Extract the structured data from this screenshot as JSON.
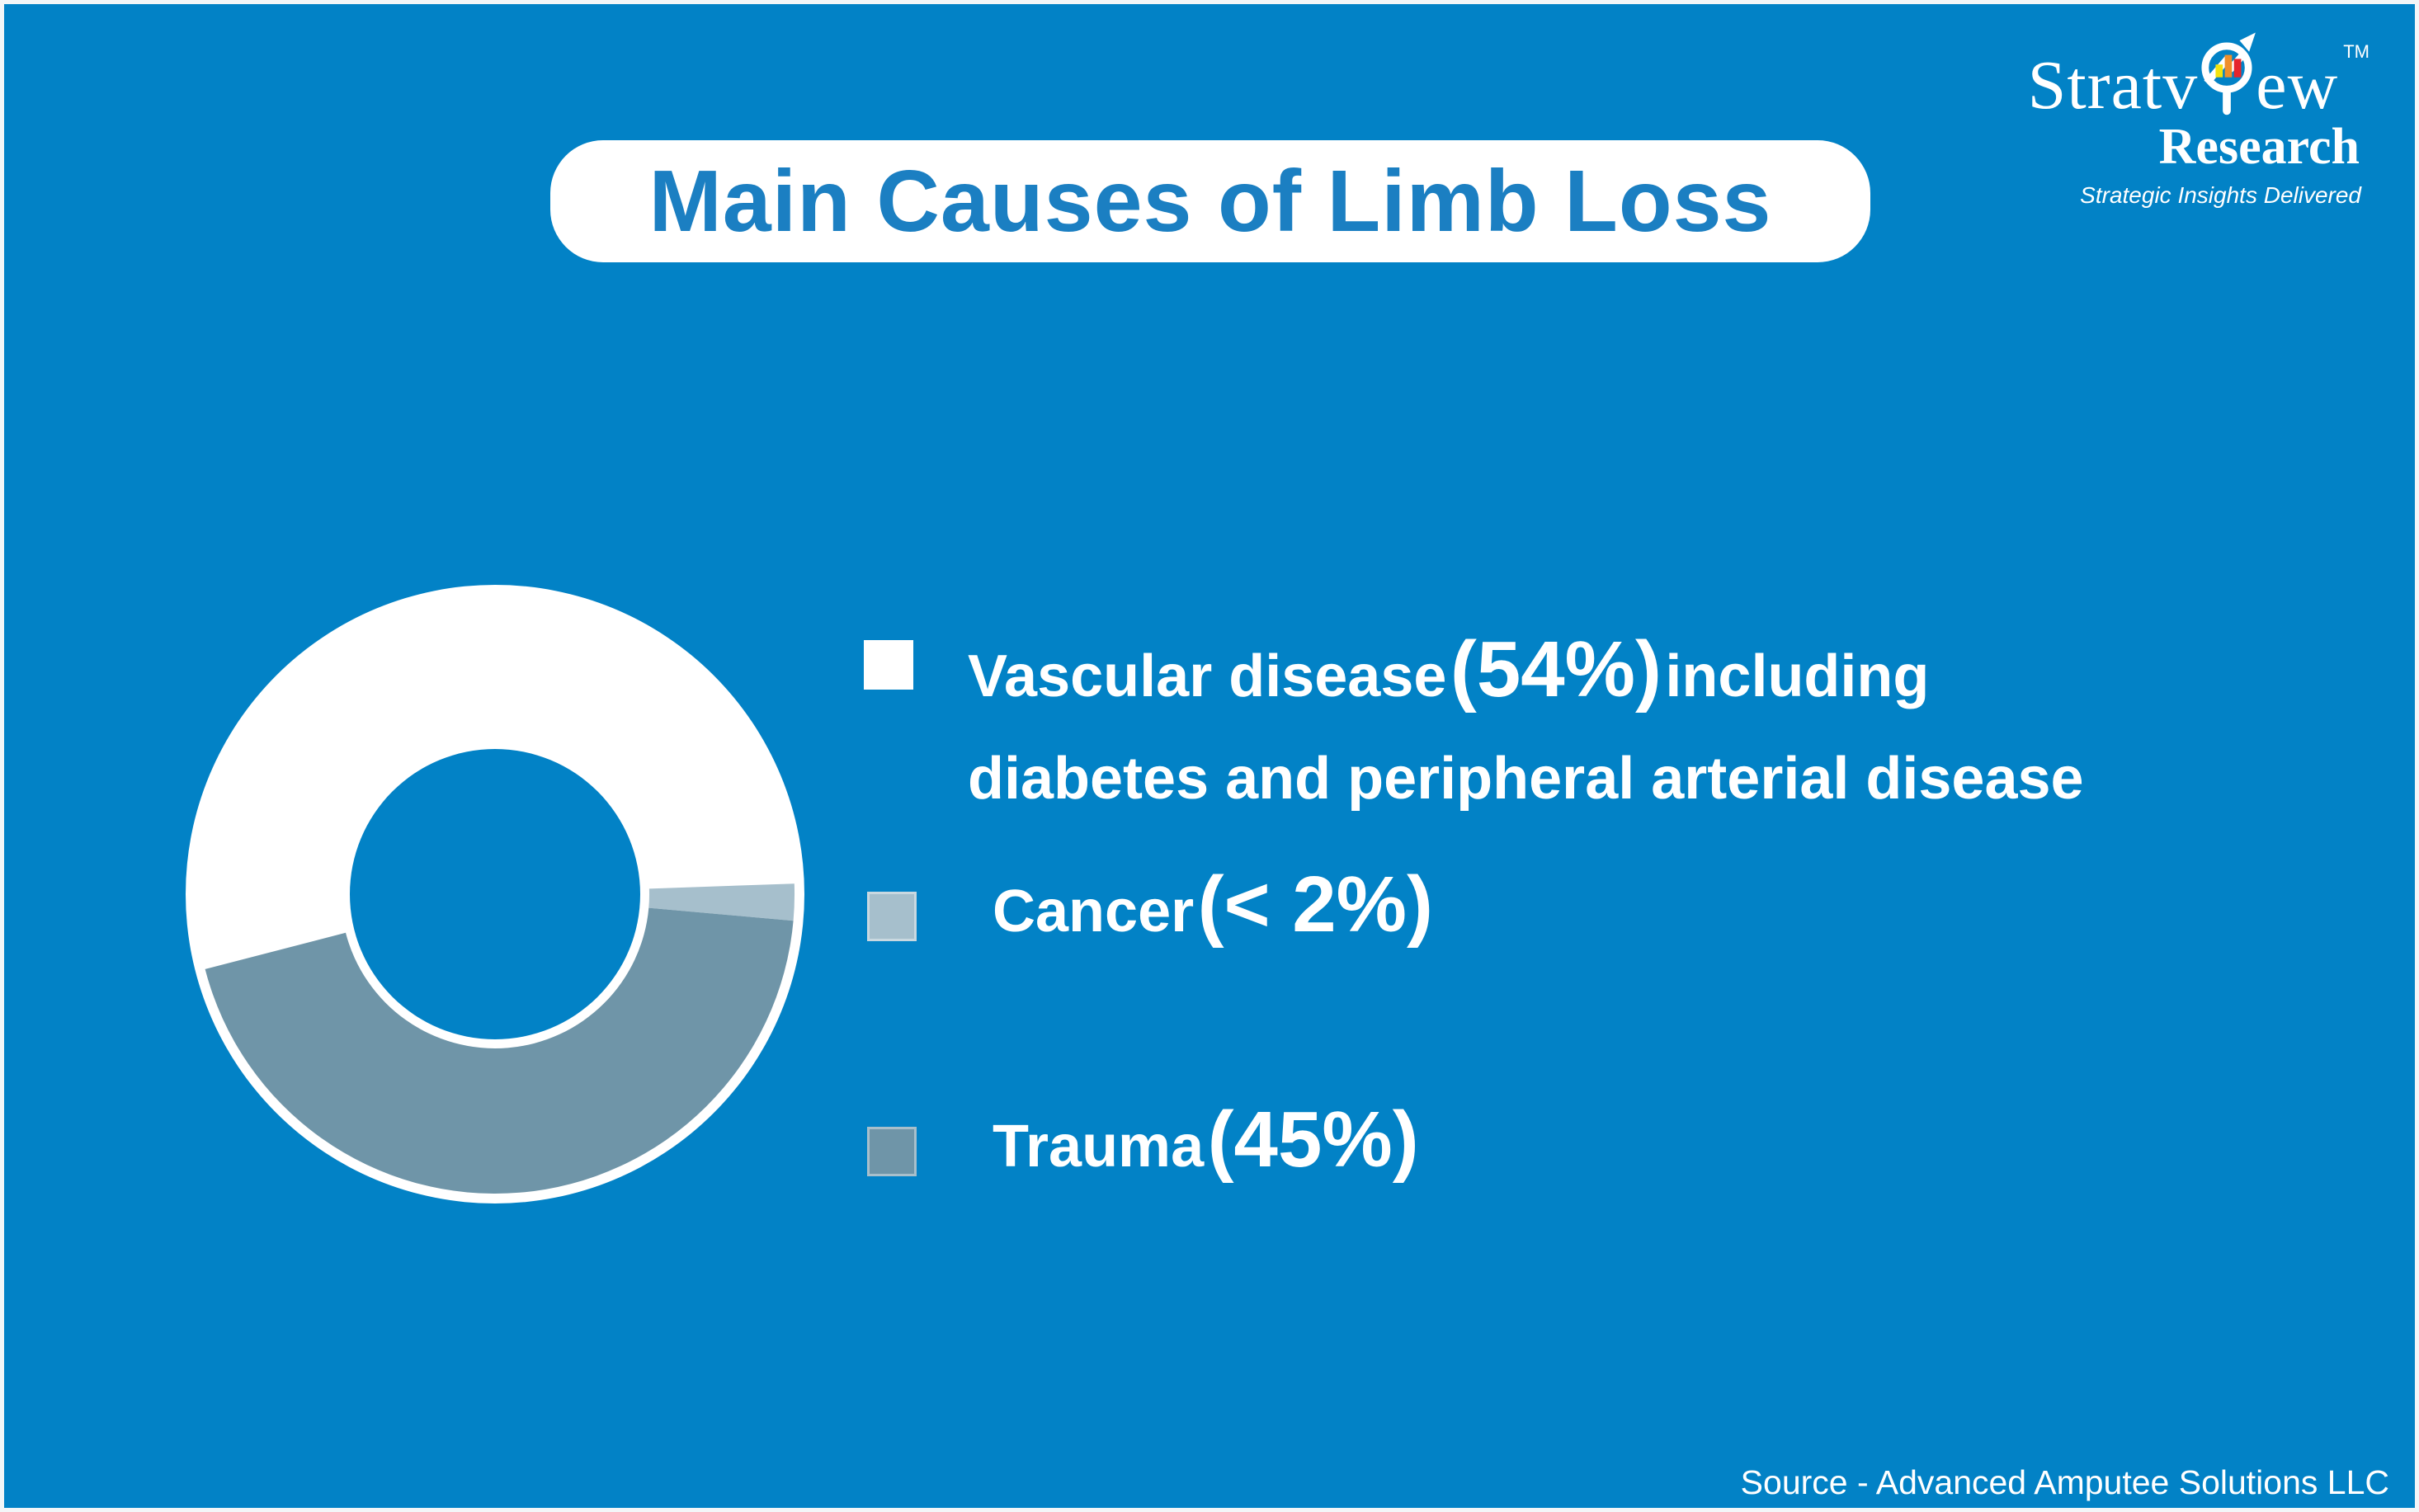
{
  "page": {
    "background": "#0282C6",
    "border_color": "#F3F6F8"
  },
  "title": {
    "text": "Main Causes of Limb Loss",
    "color": "#1B7FC2",
    "box_color": "#FFFFFF"
  },
  "logo": {
    "brand_prefix": "Stratv",
    "brand_suffix": "ew",
    "trademark": "TM",
    "division": "Research",
    "tagline": "Strategic Insights Delivered",
    "bar_colors": [
      "#F2E30D",
      "#EF8F2A",
      "#E5252C"
    ]
  },
  "chart_data": {
    "type": "pie",
    "style": "donut",
    "title": "Main Causes of Limb Loss",
    "legend_position": "right",
    "rotation_deg": 255.5,
    "outer_radius": 363,
    "inner_radius": 187,
    "rim_radius": 375,
    "hole_radius": 176,
    "slices": [
      {
        "label": "Vascular disease",
        "value": 54,
        "display": "54%",
        "color": "#FFFFFF"
      },
      {
        "label": "Cancer",
        "value": 2,
        "display": "< 2%",
        "color": "#A6BFCC"
      },
      {
        "label": "Trauma",
        "value": 45,
        "display": "45%",
        "color": "#6F95A8"
      }
    ]
  },
  "legend": {
    "items": [
      {
        "name": "Vascular disease",
        "pct": "(54%)",
        "line1_suffix": "including",
        "line2": "diabetes and peripheral arterial disease",
        "color": "#FFFFFF"
      },
      {
        "name": "Cancer",
        "pct": "(< 2%)",
        "line2": "",
        "color": "#A6BFCC"
      },
      {
        "name": "Trauma",
        "pct": "(45%)",
        "line2": "",
        "color": "#6F95A8"
      }
    ]
  },
  "source": {
    "text": "Source - Advanced Amputee Solutions LLC"
  }
}
